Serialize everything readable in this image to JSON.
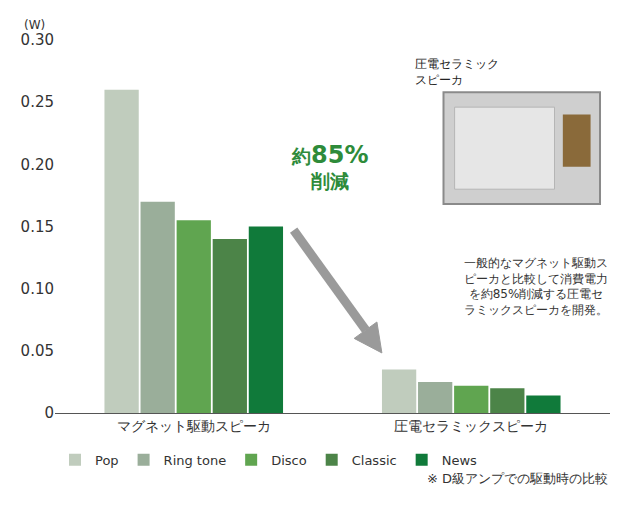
{
  "chart_data": {
    "type": "bar",
    "ylabel": "(W)",
    "categories": [
      "マグネット駆動スピーカ",
      "圧電セラミックスピーカ"
    ],
    "series": [
      {
        "name": "Pop",
        "color": "#c0ccbd",
        "values": [
          0.26,
          0.035
        ]
      },
      {
        "name": "Ring tone",
        "color": "#9aae9a",
        "values": [
          0.17,
          0.025
        ]
      },
      {
        "name": "Disco",
        "color": "#60a550",
        "values": [
          0.155,
          0.022
        ]
      },
      {
        "name": "Classic",
        "color": "#4c8448",
        "values": [
          0.14,
          0.02
        ]
      },
      {
        "name": "News",
        "color": "#107a3a",
        "values": [
          0.15,
          0.014
        ]
      }
    ],
    "ylim": [
      0,
      0.3
    ],
    "yticks": [
      0,
      0.05,
      {
        "value": 0.1,
        "label": "0.10"
      },
      0.15,
      {
        "value": 0.2,
        "label": "0.20"
      },
      0.25,
      {
        "value": 0.3,
        "label": "0.30"
      }
    ],
    "grid": false,
    "legend": "bottom",
    "annotations": [
      {
        "text": "約85%削減"
      },
      {
        "text": "圧電セラミックスピーカ"
      },
      {
        "text": "一般的なマグネット駆動スピーカと比較して消費電力を約85%削減する圧電セラミックスピーカを開発。"
      },
      {
        "text": "※ D級アンプでの駆動時の比較"
      }
    ]
  }
}
